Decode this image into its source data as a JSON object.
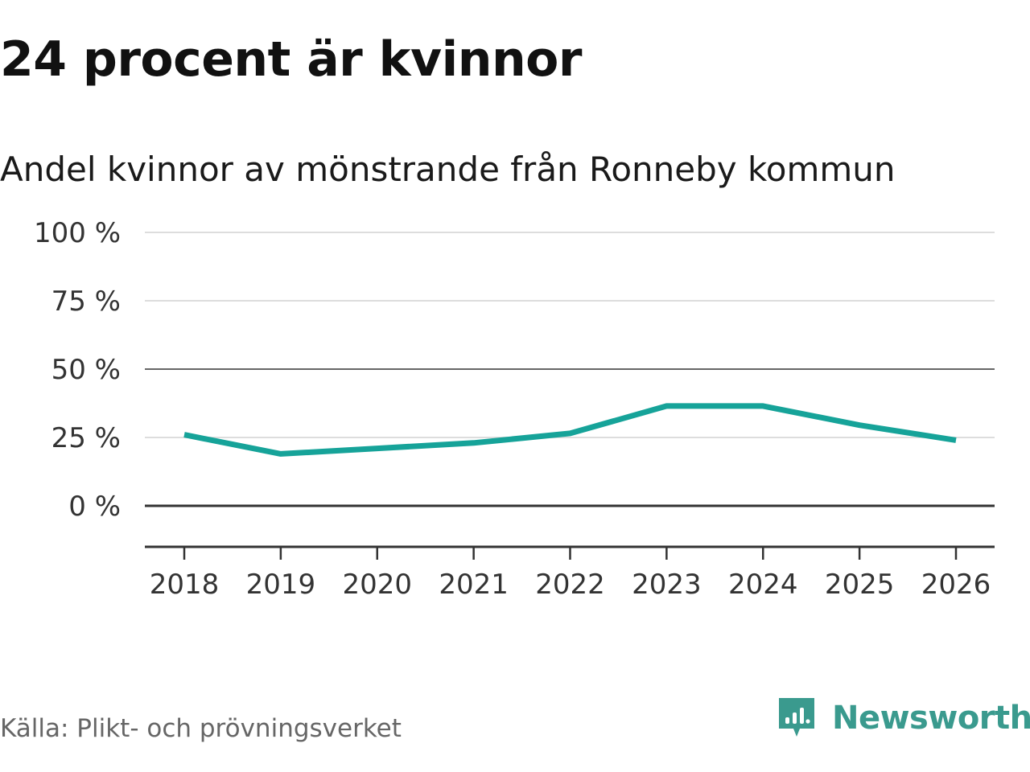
{
  "title": "24 procent är kvinnor",
  "subtitle": "Andel kvinnor av mönstrande från Ronneby kommun",
  "source": "Källa: Plikt- och prövningsverket",
  "brand": {
    "name": "Newsworthy",
    "logo_icon": "bar-chart-badge-icon",
    "color": "#3a9a8e"
  },
  "chart_data": {
    "type": "line",
    "x": [
      "2018",
      "2019",
      "2020",
      "2021",
      "2022",
      "2023",
      "2024",
      "2025",
      "2026"
    ],
    "series": [
      {
        "values": [
          26,
          19,
          21,
          23,
          26.5,
          36.5,
          36.5,
          29.5,
          24
        ],
        "color": "#16a399"
      }
    ],
    "ylim": [
      -15,
      100
    ],
    "yticks": [
      0,
      25,
      50,
      75,
      100
    ],
    "ytick_labels": [
      "0 %",
      "25 %",
      "50 %",
      "75 %",
      "100 %"
    ],
    "grid": true,
    "xlabel": "",
    "ylabel": ""
  }
}
